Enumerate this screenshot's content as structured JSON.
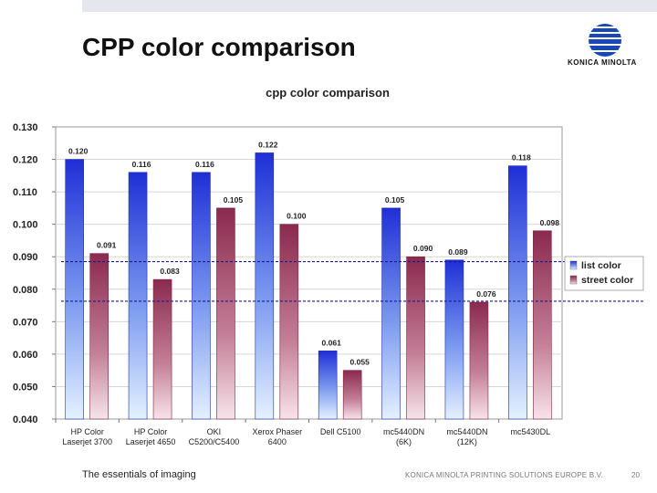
{
  "slide": {
    "title": "CPP color comparison",
    "logo_text": "KONICA MINOLTA",
    "footer_tagline": "The essentials of imaging",
    "footer_company": "KONICA MINOLTA PRINTING SOLUTIONS EUROPE B.V.",
    "page_number": "20"
  },
  "chart_data": {
    "type": "bar",
    "title": "cpp color comparison",
    "categories": [
      [
        "HP Color",
        "Laserjet 3700"
      ],
      [
        "HP Color",
        "Laserjet 4650"
      ],
      [
        "OKI",
        "C5200/C5400"
      ],
      [
        "Xerox Phaser",
        "6400"
      ],
      [
        "Dell C5100"
      ],
      [
        "mc5440DN",
        "(6K)"
      ],
      [
        "mc5440DN",
        "(12K)"
      ],
      [
        "mc5430DL"
      ]
    ],
    "series": [
      {
        "name": "list color",
        "values": [
          0.12,
          0.116,
          0.116,
          0.122,
          0.061,
          0.105,
          0.089,
          0.118
        ],
        "labels": [
          "0.120",
          "0.116",
          "0.116",
          "0.122",
          "0.061",
          "0.105",
          "0.089",
          "0.118"
        ],
        "color": "#2e3fd8"
      },
      {
        "name": "street color",
        "values": [
          0.091,
          0.083,
          0.105,
          0.1,
          0.055,
          0.09,
          0.076,
          0.098
        ],
        "labels": [
          "0.091",
          "0.083",
          "0.105",
          "0.100",
          "0.055",
          "0.090",
          "0.076",
          "0.098"
        ],
        "color": "#8e2f52"
      }
    ],
    "ylim": [
      0.04,
      0.13
    ],
    "yticks": [
      0.04,
      0.05,
      0.06,
      0.07,
      0.08,
      0.09,
      0.1,
      0.11,
      0.12,
      0.13
    ],
    "ytick_labels": [
      "0.040",
      "0.050",
      "0.060",
      "0.070",
      "0.080",
      "0.090",
      "0.100",
      "0.110",
      "0.120",
      "0.130"
    ],
    "reference_lines": [
      0.0885,
      0.0763
    ],
    "legend_position": "right",
    "grid": true
  }
}
